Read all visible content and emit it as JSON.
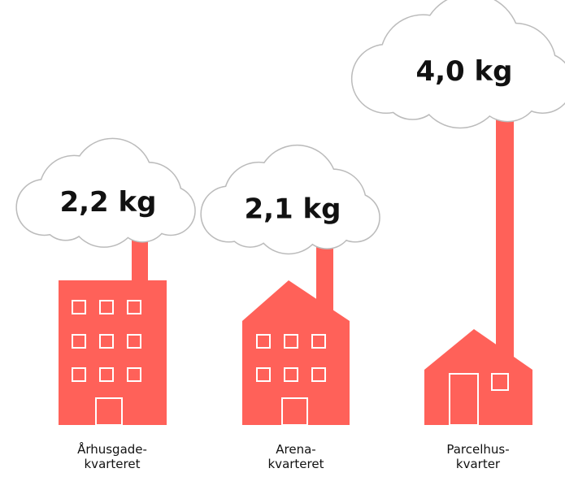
{
  "chart_data": {
    "type": "pictogram",
    "categories": [
      "Århusgade- kvarteret",
      "Arena- kvarteret",
      "Parcelhus- kvarter"
    ],
    "values": [
      2.2,
      2.1,
      4.0
    ],
    "value_labels": [
      "2,2 kg",
      "2,1 kg",
      "4,0 kg"
    ],
    "color": "#ff6159"
  }
}
